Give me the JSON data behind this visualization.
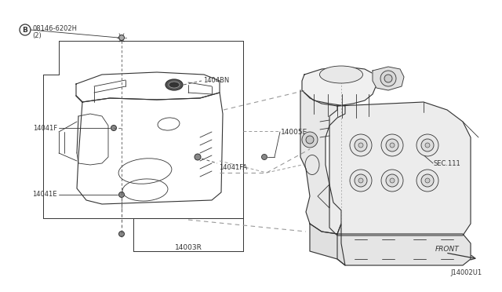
{
  "bg_color": "#ffffff",
  "line_color": "#333333",
  "dash_color": "#555555",
  "gray_line": "#999999",
  "labels": {
    "B_part": "B",
    "B_number": "08146-6202H",
    "B_qty": "(2)",
    "l_14041F": "14041F",
    "l_14041E": "14041E",
    "l_14041FA": "14041FA",
    "l_1404BN": "1404BN",
    "l_14005E": "14005E",
    "l_14003R": "14003R",
    "l_SEC111": "SEC.111",
    "l_FRONT": "FRONT",
    "l_diag_id": "J14002U1"
  },
  "figsize": [
    6.4,
    3.72
  ],
  "dpi": 100
}
